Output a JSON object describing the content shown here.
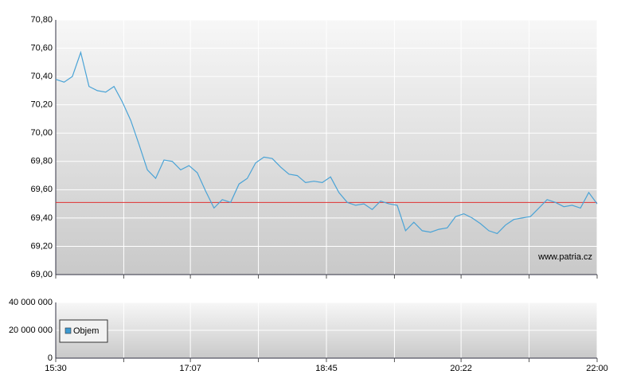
{
  "chart_data": [
    {
      "type": "line",
      "x": [
        "15:30",
        "15:36",
        "15:42",
        "15:48",
        "15:54",
        "16:00",
        "16:06",
        "16:12",
        "16:18",
        "16:24",
        "16:30",
        "16:36",
        "16:42",
        "16:48",
        "16:54",
        "17:00",
        "17:06",
        "17:12",
        "17:18",
        "17:24",
        "17:30",
        "17:36",
        "17:42",
        "17:48",
        "17:54",
        "18:00",
        "18:06",
        "18:12",
        "18:18",
        "18:24",
        "18:30",
        "18:36",
        "18:42",
        "18:48",
        "18:54",
        "19:00",
        "19:06",
        "19:12",
        "19:18",
        "19:24",
        "19:30",
        "19:36",
        "19:42",
        "19:48",
        "19:54",
        "20:00",
        "20:06",
        "20:12",
        "20:18",
        "20:24",
        "20:30",
        "20:36",
        "20:42",
        "20:48",
        "20:54",
        "21:00",
        "21:06",
        "21:12",
        "21:18",
        "21:24",
        "21:30",
        "21:36",
        "21:42",
        "21:48",
        "21:54",
        "22:00"
      ],
      "series": [
        {
          "color": "#4aa3d6",
          "values": [
            70.38,
            70.36,
            70.4,
            70.57,
            70.33,
            70.3,
            70.29,
            70.33,
            70.22,
            70.09,
            69.92,
            69.74,
            69.68,
            69.81,
            69.8,
            69.74,
            69.77,
            69.72,
            69.59,
            69.47,
            69.53,
            69.51,
            69.64,
            69.68,
            69.79,
            69.83,
            69.82,
            69.76,
            69.71,
            69.7,
            69.65,
            69.66,
            69.65,
            69.69,
            69.58,
            69.51,
            69.49,
            69.5,
            69.46,
            69.52,
            69.5,
            69.49,
            69.31,
            69.37,
            69.31,
            69.3,
            69.32,
            69.33,
            69.41,
            69.43,
            69.4,
            69.36,
            69.31,
            69.29,
            69.35,
            69.39,
            69.4,
            69.41,
            69.47,
            69.53,
            69.51,
            69.48,
            69.49,
            69.47,
            69.58,
            69.5
          ]
        }
      ],
      "reference_line": {
        "value": 69.51,
        "color": "#e03030"
      },
      "xlim": [
        "15:30",
        "22:00"
      ],
      "xgrid": [
        "15:30",
        "16:19",
        "17:07",
        "17:56",
        "18:45",
        "19:34",
        "20:22",
        "21:11",
        "22:00"
      ],
      "ylim": [
        69.0,
        70.8
      ],
      "yticks": [
        {
          "value": 69.0,
          "label": "69,00"
        },
        {
          "value": 69.2,
          "label": "69,20"
        },
        {
          "value": 69.4,
          "label": "69,40"
        },
        {
          "value": 69.6,
          "label": "69,60"
        },
        {
          "value": 69.8,
          "label": "69,80"
        },
        {
          "value": 70.0,
          "label": "70,00"
        },
        {
          "value": 70.2,
          "label": "70,20"
        },
        {
          "value": 70.4,
          "label": "70,40"
        },
        {
          "value": 70.6,
          "label": "70,60"
        },
        {
          "value": 70.8,
          "label": "70,80"
        }
      ],
      "grid": true,
      "watermark": "www.patria.cz"
    },
    {
      "type": "bar",
      "series": [
        {
          "name": "Objem",
          "color": "#3d9ad1"
        }
      ],
      "legend": "lower-left",
      "xlim": [
        "15:30",
        "22:00"
      ],
      "xticks": [
        "15:30",
        "17:07",
        "18:45",
        "20:22",
        "22:00"
      ],
      "ylim": [
        0,
        40000000
      ],
      "yticks": [
        0,
        {
          "value": 20000000,
          "label": "20 000 000"
        },
        {
          "value": 40000000,
          "label": "40 000 000"
        }
      ],
      "grid": true
    }
  ]
}
